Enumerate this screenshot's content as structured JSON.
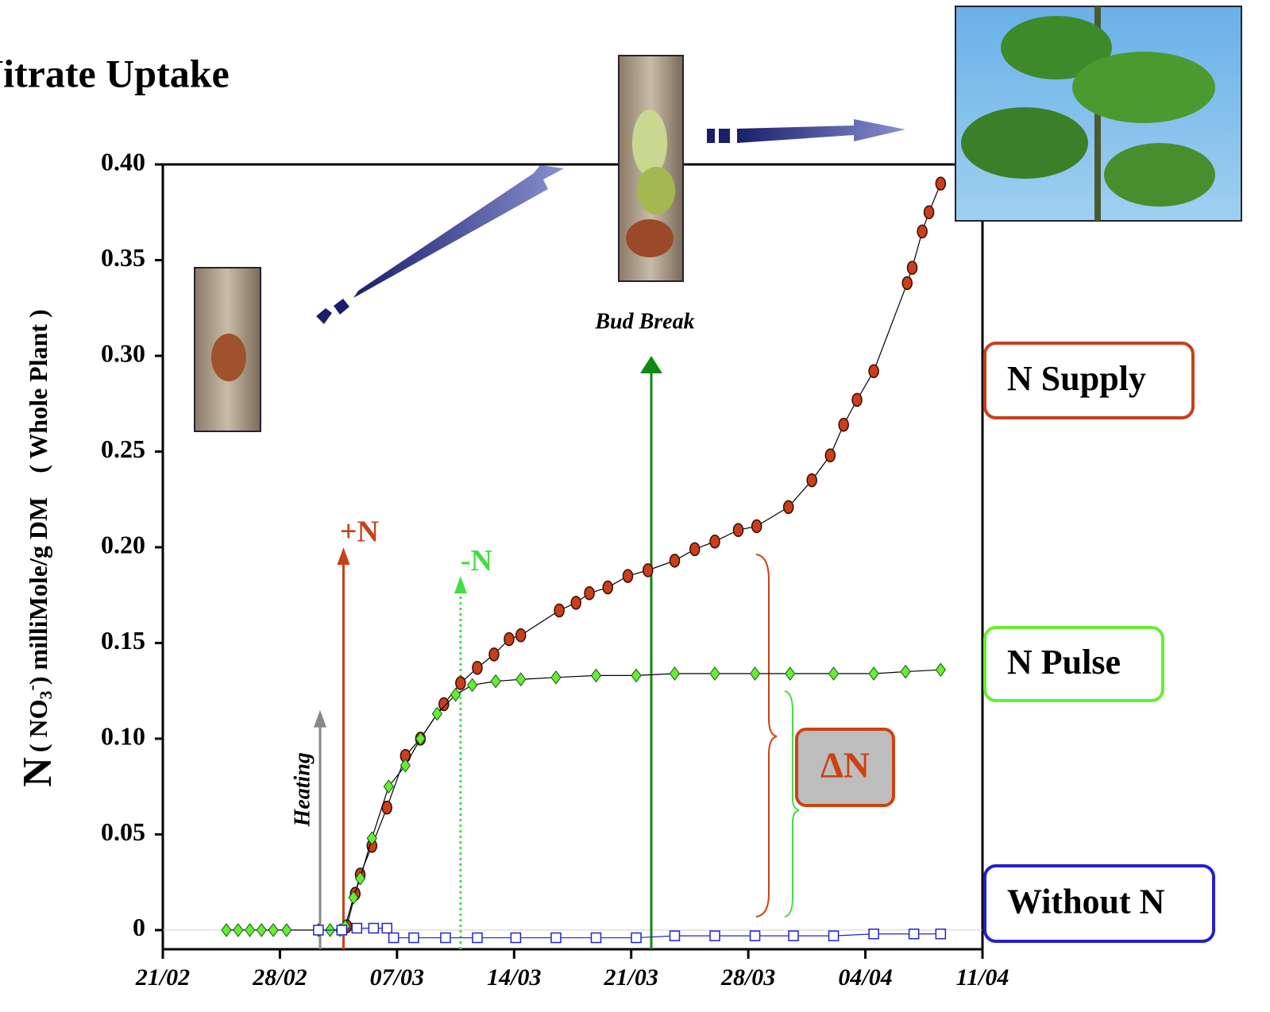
{
  "chart_data": {
    "type": "line",
    "title": "Nitrate Uptake",
    "y_label": {
      "main": "N",
      "open": "( NO",
      "sub": "3",
      "sup": "-",
      "rest": ")  milliMole/g  DM",
      "extra": "( Whole Plant )"
    },
    "xlim": [
      0,
      49
    ],
    "xticks": [
      {
        "value": 0,
        "label": "21/02"
      },
      {
        "value": 7,
        "label": "28/02"
      },
      {
        "value": 14,
        "label": "07/03"
      },
      {
        "value": 21,
        "label": "14/03"
      },
      {
        "value": 28,
        "label": "21/03"
      },
      {
        "value": 35,
        "label": "28/03"
      },
      {
        "value": 42,
        "label": "04/04"
      },
      {
        "value": 49,
        "label": "11/04"
      }
    ],
    "ylim": [
      -0.01,
      0.4
    ],
    "yticks": [
      {
        "value": 0.4,
        "label": "0.40"
      },
      0.35,
      {
        "value": 0.3,
        "label": "0.30"
      },
      0.25,
      {
        "value": 0.2,
        "label": "0.20"
      },
      0.15,
      {
        "value": 0.1,
        "label": "0.10"
      },
      0.05,
      0
    ],
    "zero_line": true,
    "series": [
      {
        "name": "N Supply",
        "color": "#c8401a",
        "marker": "circle",
        "x": [
          11.0,
          11.5,
          11.8,
          12.5,
          13.4,
          14.5,
          15.4,
          16.8,
          17.8,
          18.8,
          19.8,
          20.7,
          21.4,
          23.7,
          24.7,
          25.5,
          26.6,
          27.8,
          29.0,
          30.6,
          31.8,
          33.0,
          34.4,
          35.5,
          37.4,
          38.8,
          39.9,
          40.7,
          41.5,
          42.5,
          44.5,
          44.8,
          45.4,
          45.8,
          46.5
        ],
        "values": [
          0.002,
          0.019,
          0.029,
          0.044,
          0.064,
          0.091,
          0.1,
          0.118,
          0.129,
          0.137,
          0.144,
          0.152,
          0.154,
          0.167,
          0.171,
          0.176,
          0.179,
          0.185,
          0.188,
          0.193,
          0.199,
          0.203,
          0.209,
          0.211,
          0.221,
          0.235,
          0.248,
          0.264,
          0.277,
          0.292,
          0.338,
          0.346,
          0.365,
          0.375,
          0.39
        ]
      },
      {
        "name": "N Pulse",
        "color": "#66ee33",
        "marker": "diamond",
        "x": [
          3.8,
          4.5,
          5.2,
          5.9,
          6.6,
          7.4,
          9.3,
          10.0,
          10.6,
          10.9,
          11.4,
          11.8,
          12.5,
          13.5,
          14.5,
          15.4,
          16.4,
          17.5,
          18.5,
          19.9,
          21.4,
          23.5,
          25.9,
          28.3,
          30.6,
          33.0,
          35.4,
          37.5,
          40.1,
          42.5,
          44.4,
          46.5
        ],
        "values": [
          0,
          0,
          0,
          0,
          0,
          0,
          0,
          0,
          0,
          0.002,
          0.017,
          0.027,
          0.048,
          0.075,
          0.086,
          0.1,
          0.113,
          0.123,
          0.128,
          0.13,
          0.131,
          0.132,
          0.133,
          0.133,
          0.134,
          0.134,
          0.134,
          0.134,
          0.134,
          0.134,
          0.135,
          0.136
        ]
      },
      {
        "name": "Without N",
        "color": "#2222cc",
        "marker": "square",
        "x": [
          9.3,
          10.7,
          11.6,
          12.6,
          13.4,
          13.8,
          15.0,
          16.9,
          18.8,
          21.1,
          23.5,
          25.9,
          28.3,
          30.6,
          33.0,
          35.4,
          37.7,
          40.1,
          42.5,
          44.9,
          46.5
        ],
        "values": [
          0,
          0,
          0.001,
          0.001,
          0.001,
          -0.004,
          -0.004,
          -0.004,
          -0.004,
          -0.004,
          -0.004,
          -0.004,
          -0.004,
          -0.003,
          -0.003,
          -0.003,
          -0.003,
          -0.003,
          -0.002,
          -0.002,
          -0.002
        ]
      }
    ],
    "events": [
      {
        "label": "Heating",
        "x": 9.4,
        "y": 0.115,
        "color": "#888888"
      },
      {
        "label": "+N",
        "x": 10.8,
        "y": 0.2,
        "color": "#c8401a"
      },
      {
        "label": "-N",
        "x": 17.8,
        "y": 0.185,
        "color": "#44dd44"
      },
      {
        "label": "Bud Break",
        "x": 29.2,
        "y": 0.3,
        "color": "#118811"
      }
    ],
    "delta_label": "ΔN"
  }
}
